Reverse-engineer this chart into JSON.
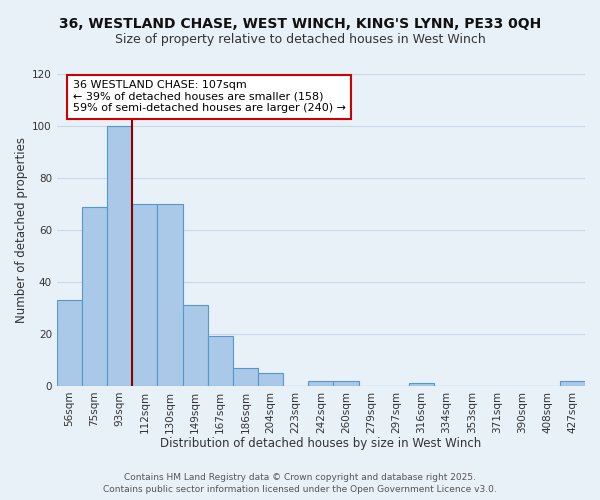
{
  "title_line1": "36, WESTLAND CHASE, WEST WINCH, KING'S LYNN, PE33 0QH",
  "title_line2": "Size of property relative to detached houses in West Winch",
  "xlabel": "Distribution of detached houses by size in West Winch",
  "ylabel": "Number of detached properties",
  "bar_labels": [
    "56sqm",
    "75sqm",
    "93sqm",
    "112sqm",
    "130sqm",
    "149sqm",
    "167sqm",
    "186sqm",
    "204sqm",
    "223sqm",
    "242sqm",
    "260sqm",
    "279sqm",
    "297sqm",
    "316sqm",
    "334sqm",
    "353sqm",
    "371sqm",
    "390sqm",
    "408sqm",
    "427sqm"
  ],
  "bar_heights": [
    33,
    69,
    100,
    70,
    70,
    31,
    19,
    7,
    5,
    0,
    2,
    2,
    0,
    0,
    1,
    0,
    0,
    0,
    0,
    0,
    2
  ],
  "bar_color": "#aac8e8",
  "bar_edge_color": "#5599cc",
  "vline_color": "#8b0000",
  "vline_x": 2.5,
  "annotation_text": "36 WESTLAND CHASE: 107sqm\n← 39% of detached houses are smaller (158)\n59% of semi-detached houses are larger (240) →",
  "annotation_box_color": "#ffffff",
  "annotation_box_edge": "#cc0000",
  "ylim": [
    0,
    120
  ],
  "yticks": [
    0,
    20,
    40,
    60,
    80,
    100,
    120
  ],
  "grid_color": "#c8d8e8",
  "bg_color": "#e8f0f8",
  "footer_line1": "Contains HM Land Registry data © Crown copyright and database right 2025.",
  "footer_line2": "Contains public sector information licensed under the Open Government Licence v3.0.",
  "title_fontsize": 10,
  "subtitle_fontsize": 9,
  "axis_label_fontsize": 8.5,
  "tick_fontsize": 7.5,
  "annotation_fontsize": 8,
  "footer_fontsize": 6.5
}
